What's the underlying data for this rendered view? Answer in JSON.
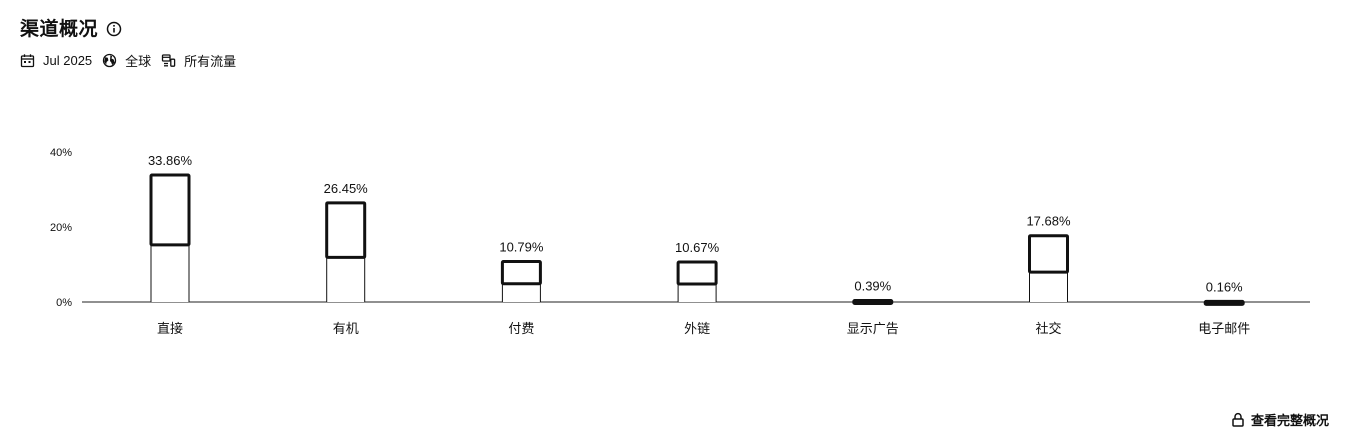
{
  "header": {
    "title": "渠道概况",
    "info_icon": "info-icon",
    "meta": [
      {
        "icon": "calendar-icon",
        "label": "Jul 2025"
      },
      {
        "icon": "globe-icon",
        "label": "全球"
      },
      {
        "icon": "traffic-icon",
        "label": "所有流量"
      }
    ]
  },
  "chart_data": {
    "type": "bar",
    "categories": [
      "直接",
      "有机",
      "付费",
      "外链",
      "显示广告",
      "社交",
      "电子邮件"
    ],
    "values": [
      33.86,
      26.45,
      10.79,
      10.67,
      0.39,
      17.68,
      0.16
    ],
    "value_labels": [
      "33.86%",
      "26.45%",
      "10.79%",
      "10.67%",
      "0.39%",
      "17.68%",
      "0.16%"
    ],
    "y_ticks": [
      0,
      20,
      40
    ],
    "y_tick_labels": [
      "0%",
      "20%",
      "40%"
    ],
    "ylim": [
      0,
      40
    ],
    "grid": false,
    "legend": "none",
    "colors": {
      "bar_stroke": "#111111",
      "axis": "#222222",
      "bar_fill": "#ffffff"
    }
  },
  "footer": {
    "icon": "lock-icon",
    "label": "查看完整概况"
  }
}
